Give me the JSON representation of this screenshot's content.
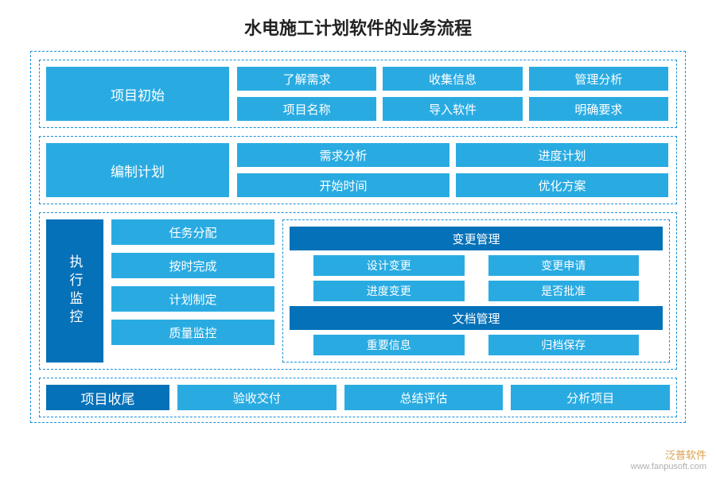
{
  "title": "水电施工计划软件的业务流程",
  "colors": {
    "light": "#29abe2",
    "dark": "#0571b8",
    "border": "#1a8fd6",
    "bg": "#ffffff",
    "title": "#222222"
  },
  "section1": {
    "label": "项目初始",
    "items": [
      "了解需求",
      "收集信息",
      "管理分析",
      "项目名称",
      "导入软件",
      "明确要求"
    ]
  },
  "section2": {
    "label": "编制计划",
    "items": [
      "需求分析",
      "进度计划",
      "开始时间",
      "优化方案"
    ]
  },
  "section3": {
    "label": "执行监控",
    "left": [
      "任务分配",
      "按时完成",
      "计划制定",
      "质量监控"
    ],
    "right": {
      "group1": {
        "header": "变更管理",
        "rows": [
          [
            "设计变更",
            "变更申请"
          ],
          [
            "进度变更",
            "是否批准"
          ]
        ]
      },
      "group2": {
        "header": "文档管理",
        "rows": [
          [
            "重要信息",
            "归档保存"
          ]
        ]
      }
    }
  },
  "section4": {
    "label": "项目收尾",
    "items": [
      "验收交付",
      "总结评估",
      "分析项目"
    ]
  },
  "watermark": {
    "brand": "泛普软件",
    "url": "www.fanpusoft.com"
  }
}
